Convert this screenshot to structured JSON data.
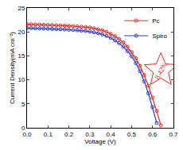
{
  "chart_data": {
    "type": "line",
    "x_label": "Voltage (V)",
    "y_label": "Current Density(mA cm⁻²)",
    "xlim": [
      0.0,
      0.7
    ],
    "xticks": [
      {
        "value": 0,
        "label": "0.0"
      },
      0.1,
      0.2,
      0.3,
      0.4,
      0.5,
      0.6,
      0.7
    ],
    "ylim": [
      0,
      25
    ],
    "yticks": [
      0,
      5,
      10,
      15,
      20,
      25
    ],
    "grid": false,
    "legend": "upper right",
    "series": [
      {
        "name": "Pc",
        "color": "#e8281e",
        "marker": "circle-open",
        "x": [
          0,
          0.02,
          0.04,
          0.06,
          0.08,
          0.1,
          0.12,
          0.14,
          0.16,
          0.18,
          0.2,
          0.22,
          0.24,
          0.26,
          0.28,
          0.3,
          0.32,
          0.34,
          0.36,
          0.38,
          0.4,
          0.42,
          0.44,
          0.46,
          0.48,
          0.5,
          0.52,
          0.54,
          0.56,
          0.58,
          0.6,
          0.62,
          0.64
        ],
        "values": [
          21.6,
          21.58,
          21.55,
          21.52,
          21.48,
          21.45,
          21.42,
          21.38,
          21.34,
          21.3,
          21.25,
          21.2,
          21.14,
          21.08,
          21.0,
          20.9,
          20.75,
          20.55,
          20.3,
          20.0,
          19.6,
          19.1,
          18.5,
          17.8,
          16.9,
          15.8,
          14.5,
          12.9,
          11.0,
          8.8,
          6.3,
          3.5,
          0.5
        ]
      },
      {
        "name": "Spiro",
        "color": "#2a3bd6",
        "marker": "circle-open",
        "x": [
          0,
          0.02,
          0.04,
          0.06,
          0.08,
          0.1,
          0.12,
          0.14,
          0.16,
          0.18,
          0.2,
          0.22,
          0.24,
          0.26,
          0.28,
          0.3,
          0.32,
          0.34,
          0.36,
          0.38,
          0.4,
          0.42,
          0.44,
          0.46,
          0.48,
          0.5,
          0.52,
          0.54,
          0.56,
          0.58,
          0.6,
          0.62
        ],
        "values": [
          20.8,
          20.78,
          20.75,
          20.72,
          20.68,
          20.65,
          20.62,
          20.58,
          20.54,
          20.5,
          20.45,
          20.4,
          20.34,
          20.27,
          20.18,
          20.07,
          19.92,
          19.72,
          19.47,
          19.15,
          18.75,
          18.25,
          17.65,
          16.9,
          16.0,
          14.9,
          13.5,
          11.8,
          9.7,
          7.2,
          4.3,
          1.0
        ]
      }
    ],
    "annotations": [
      {
        "text": "8.42%",
        "x": 0.64,
        "y": 12
      }
    ]
  }
}
